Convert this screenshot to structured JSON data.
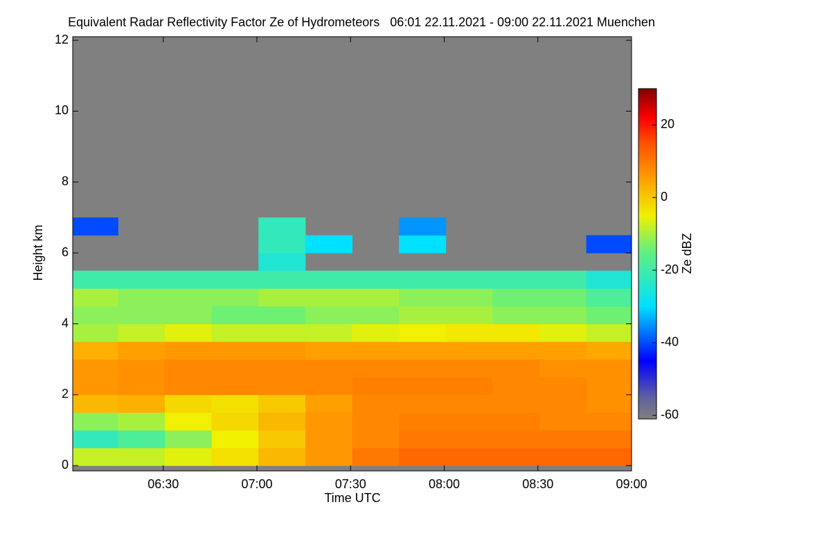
{
  "chart_data": {
    "type": "heatmap",
    "title": "Equivalent Radar Reflectivity Factor Ze of Hydrometeors   06:01 22.11.2021 - 09:00 22.11.2021 Muenchen",
    "x_label": "Time UTC",
    "y_label": "Height km",
    "colorbar_label": "Ze dBZ",
    "x": [
      368,
      383,
      398,
      413,
      428,
      443,
      458,
      473,
      488,
      503,
      518,
      533
    ],
    "y": [
      0.25,
      0.75,
      1.25,
      1.75,
      2.25,
      2.75,
      3.25,
      3.75,
      4.25,
      4.75,
      5.25,
      5.75,
      6.25,
      6.75
    ],
    "values": [
      [
        -8,
        -8,
        -6,
        -3,
        2,
        6,
        10,
        12,
        12,
        12,
        12,
        12
      ],
      [
        -22,
        -18,
        -12,
        -5,
        0,
        6,
        8,
        10,
        10,
        10,
        10,
        10
      ],
      [
        -12,
        -10,
        -5,
        -2,
        2,
        6,
        8,
        9,
        9,
        9,
        8,
        8
      ],
      [
        2,
        3,
        -2,
        -3,
        0,
        5,
        8,
        8,
        8,
        8,
        8,
        7
      ],
      [
        6,
        7,
        8,
        8,
        8,
        8,
        9,
        9,
        9,
        8,
        8,
        7
      ],
      [
        6,
        7,
        8,
        8,
        8,
        8,
        8,
        8,
        8,
        8,
        7,
        7
      ],
      [
        3,
        5,
        6,
        6,
        6,
        5,
        5,
        5,
        5,
        5,
        5,
        4
      ],
      [
        -10,
        -8,
        -6,
        -8,
        -8,
        -8,
        -6,
        -5,
        -4,
        -4,
        -6,
        -8
      ],
      [
        -12,
        -12,
        -12,
        -14,
        -14,
        -12,
        -12,
        -10,
        -10,
        -12,
        -12,
        -14
      ],
      [
        -10,
        -12,
        -12,
        -12,
        -10,
        -10,
        -10,
        -12,
        -12,
        -14,
        -14,
        -18
      ],
      [
        -20,
        -20,
        -20,
        -20,
        -20,
        -20,
        -20,
        -20,
        -20,
        -20,
        -20,
        -25
      ],
      [
        null,
        null,
        null,
        null,
        -25,
        null,
        null,
        null,
        null,
        null,
        null,
        null
      ],
      [
        null,
        null,
        null,
        null,
        -22,
        -30,
        null,
        -30,
        null,
        null,
        null,
        -40
      ],
      [
        -40,
        null,
        null,
        null,
        -22,
        null,
        null,
        -35,
        null,
        null,
        null,
        null
      ]
    ],
    "xlim": [
      361,
      540
    ],
    "xticks": [
      {
        "value": 390,
        "label": "06:30"
      },
      {
        "value": 420,
        "label": "07:00"
      },
      {
        "value": 450,
        "label": "07:30"
      },
      {
        "value": 480,
        "label": "08:00"
      },
      {
        "value": 510,
        "label": "08:30"
      },
      {
        "value": 540,
        "label": "09:00"
      }
    ],
    "ylim": [
      -0.15,
      12.1
    ],
    "yticks": [
      0,
      2,
      4,
      6,
      8,
      10,
      12
    ],
    "zlim": [
      -61,
      30
    ],
    "zticks": [
      -60,
      -40,
      -20,
      0,
      20
    ],
    "background_color": "#808080",
    "colorscale": [
      [
        -61,
        "#808080"
      ],
      [
        -55,
        "#6060a0"
      ],
      [
        -45,
        "#0000ff"
      ],
      [
        -30,
        "#00e0ff"
      ],
      [
        -15,
        "#60f080"
      ],
      [
        -5,
        "#f0f000"
      ],
      [
        5,
        "#ffa000"
      ],
      [
        15,
        "#ff5000"
      ],
      [
        22,
        "#ff0000"
      ],
      [
        30,
        "#800000"
      ]
    ]
  }
}
